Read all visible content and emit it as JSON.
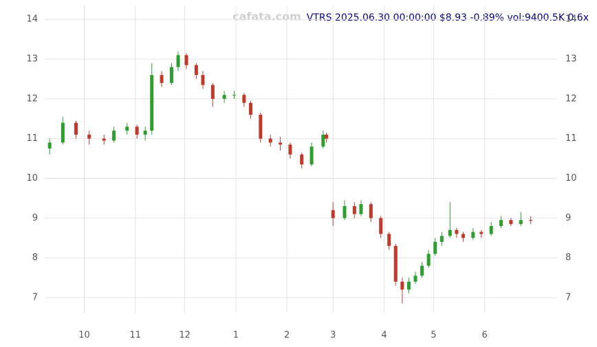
{
  "chart_data": {
    "type": "candlestick",
    "title": "VTRS 2025.06.30 00:00:00 $8.93 -0.89% vol:9400.5K 0.6x",
    "watermark": "cafata.com",
    "x": [
      -5,
      3,
      11,
      19,
      28,
      34,
      42,
      48,
      53,
      57,
      63,
      69,
      73,
      78,
      84,
      88,
      94,
      101,
      107,
      113,
      117,
      123,
      129,
      135,
      141,
      148,
      154,
      161,
      163,
      167,
      174,
      180,
      184,
      190,
      196,
      201,
      205,
      209,
      213,
      217,
      221,
      225,
      229,
      233,
      238,
      242,
      246,
      252,
      257,
      263,
      269,
      275,
      281,
      287
    ],
    "open": [
      10.75,
      10.9,
      11.4,
      11.1,
      11.0,
      10.95,
      11.2,
      11.3,
      11.1,
      11.2,
      12.6,
      12.4,
      12.8,
      13.1,
      12.85,
      12.6,
      12.35,
      12.0,
      12.1,
      12.1,
      11.9,
      11.6,
      11.0,
      10.9,
      10.85,
      10.6,
      10.35,
      10.8,
      11.1,
      9.2,
      9.0,
      9.3,
      9.1,
      9.35,
      9.0,
      8.6,
      8.3,
      7.4,
      7.2,
      7.4,
      7.55,
      7.8,
      8.1,
      8.4,
      8.55,
      8.7,
      8.6,
      8.5,
      8.65,
      8.6,
      8.8,
      8.95,
      8.85,
      8.95
    ],
    "high": [
      11.0,
      11.55,
      11.45,
      11.2,
      11.1,
      11.3,
      11.4,
      11.35,
      11.3,
      12.9,
      12.7,
      12.9,
      13.2,
      13.15,
      12.9,
      12.7,
      12.4,
      12.2,
      12.2,
      12.15,
      11.95,
      11.65,
      11.1,
      11.05,
      10.9,
      10.65,
      10.9,
      11.2,
      11.15,
      9.4,
      9.45,
      9.4,
      9.45,
      9.4,
      9.05,
      8.65,
      8.35,
      7.5,
      7.5,
      7.65,
      7.9,
      8.2,
      8.5,
      8.65,
      9.4,
      8.75,
      8.65,
      8.75,
      8.7,
      8.9,
      9.05,
      9.0,
      9.15,
      9.05
    ],
    "low": [
      10.6,
      10.85,
      11.0,
      10.85,
      10.85,
      10.9,
      11.1,
      11.0,
      10.95,
      11.1,
      12.3,
      12.35,
      12.7,
      12.75,
      12.5,
      12.25,
      11.8,
      11.9,
      12.0,
      11.8,
      11.5,
      10.9,
      10.8,
      10.7,
      10.5,
      10.25,
      10.3,
      10.75,
      10.9,
      8.8,
      8.95,
      9.0,
      9.05,
      8.9,
      8.5,
      8.2,
      7.3,
      6.85,
      7.1,
      7.35,
      7.5,
      7.75,
      8.05,
      8.3,
      8.5,
      8.5,
      8.4,
      8.45,
      8.5,
      8.55,
      8.75,
      8.8,
      8.8,
      8.85
    ],
    "close": [
      10.9,
      11.4,
      11.1,
      11.0,
      10.95,
      11.2,
      11.3,
      11.1,
      11.2,
      12.6,
      12.4,
      12.8,
      13.1,
      12.85,
      12.6,
      12.35,
      12.0,
      12.1,
      12.1,
      11.9,
      11.6,
      11.0,
      10.9,
      10.85,
      10.6,
      10.35,
      10.8,
      11.1,
      11.0,
      9.0,
      9.3,
      9.1,
      9.35,
      9.0,
      8.6,
      8.3,
      7.4,
      7.2,
      7.4,
      7.55,
      7.8,
      8.1,
      8.4,
      8.55,
      8.7,
      8.6,
      8.5,
      8.65,
      8.6,
      8.8,
      8.95,
      8.85,
      8.95,
      8.93
    ],
    "up_color": "#2e9e2e",
    "down_color": "#c0392b",
    "xlim": [
      -8,
      303
    ],
    "xticks": [
      {
        "value": 16,
        "label": "10"
      },
      {
        "value": 47,
        "label": "11"
      },
      {
        "value": 77,
        "label": "12"
      },
      {
        "value": 108,
        "label": "1"
      },
      {
        "value": 139,
        "label": "2"
      },
      {
        "value": 167,
        "label": "3"
      },
      {
        "value": 198,
        "label": "4"
      },
      {
        "value": 228,
        "label": "5"
      },
      {
        "value": 259,
        "label": "6"
      }
    ],
    "ylim": [
      6.62,
      14.35
    ],
    "yticks": [
      7,
      8,
      9,
      10,
      11,
      12,
      13,
      14
    ],
    "grid": true
  }
}
